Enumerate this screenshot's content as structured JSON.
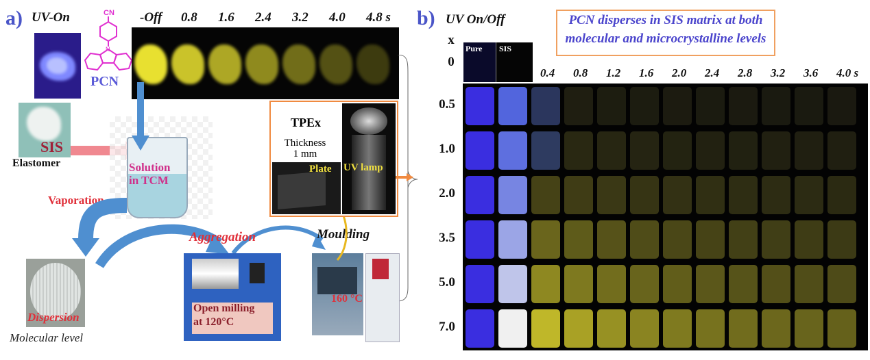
{
  "panel_a": {
    "label": "a)",
    "uv_on_label": "UV-On",
    "molecule_name": "PCN",
    "molecule_group": "CN",
    "molecule_atom": "N",
    "time_labels": [
      "-Off",
      "0.8",
      "1.6",
      "2.4",
      "3.2",
      "4.0",
      "4.8 s"
    ],
    "sis_text": "SIS",
    "elastomer": "Elastomer",
    "solution": [
      "Solution",
      "in TCM"
    ],
    "vaporation": "Vaporation",
    "dispersion": "Dispersion",
    "molecular_level": "Molecular level",
    "aggregation": "Aggregation",
    "open_milling": [
      "Open milling",
      "at 120°C"
    ],
    "moulding": "Moulding",
    "temperature": "160 °C",
    "inset": {
      "title": "TPEx",
      "thickness": [
        "Thickness",
        "1 mm"
      ],
      "plate": "Plate",
      "uv_lamp": "UV lamp"
    }
  },
  "panel_b": {
    "label": "b)",
    "uv_label": "UV On/Off",
    "callout": [
      "PCN disperses in SIS matrix at both",
      "molecular and microcrystalline levels"
    ],
    "x_header": "x",
    "zero_row": "0",
    "pure_label": "Pure",
    "sis_label": "SIS",
    "time_labels": [
      "0.4",
      "0.8",
      "1.2",
      "1.6",
      "2.0",
      "2.4",
      "2.8",
      "3.2",
      "3.6",
      "4.0 s"
    ],
    "rows": [
      "0.5",
      "1.0",
      "2.0",
      "3.5",
      "5.0",
      "7.0"
    ]
  },
  "colors": {
    "panel_label": "#4a55c8",
    "uv_blue": "#3a2ee0",
    "afterglow_yellow": "#e8e030",
    "callout_border": "#f0a060",
    "callout_text": "#4a44cc",
    "annotation_red": "#e0303a",
    "arrow_blue": "#4f8fd0"
  }
}
